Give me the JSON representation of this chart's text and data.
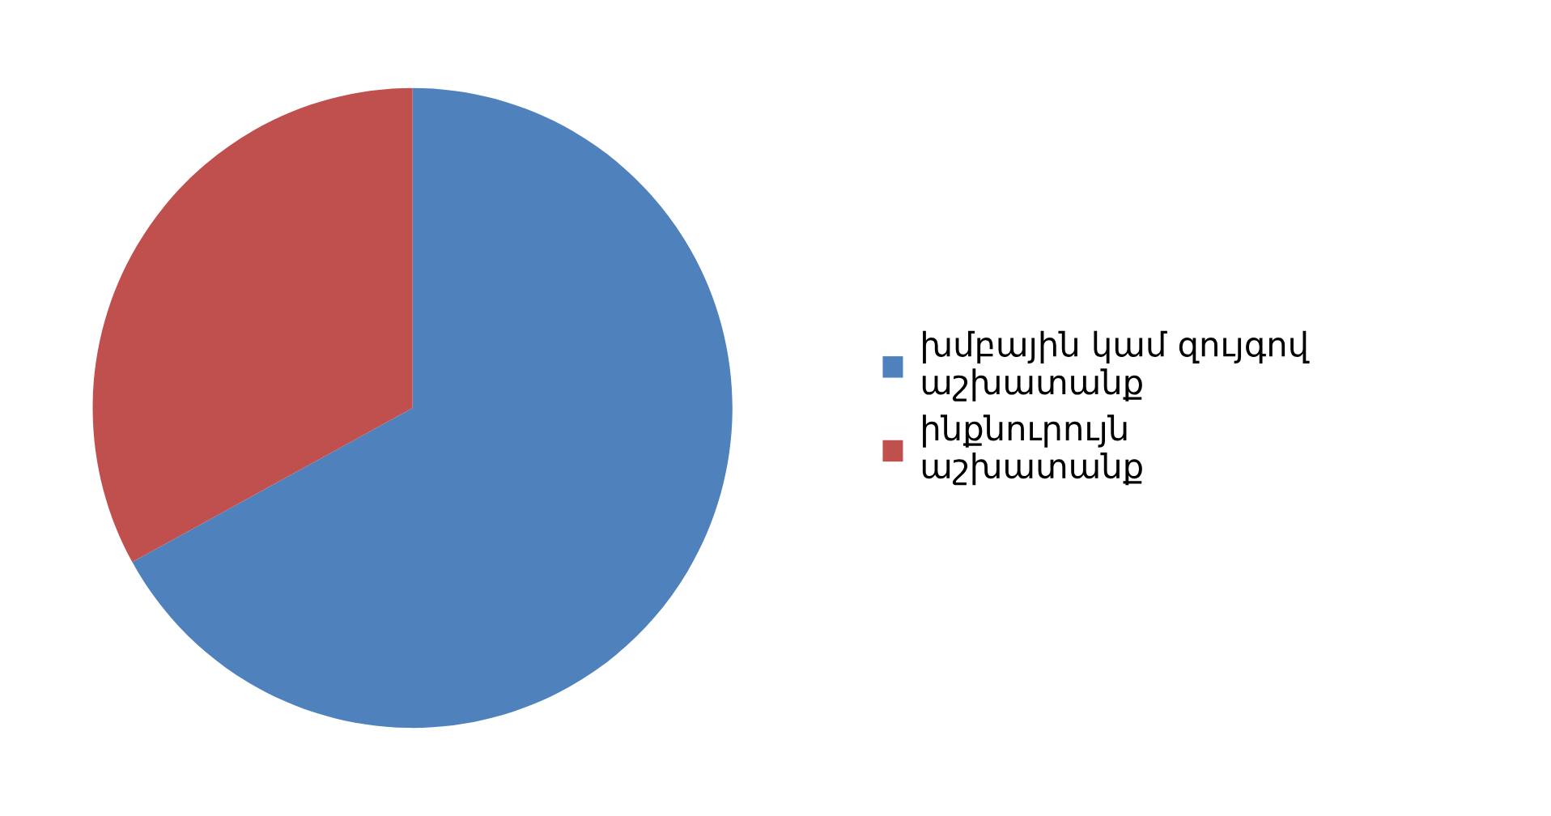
{
  "chart_data": {
    "type": "pie",
    "categories": [
      "խմբային կամ զույգով\nաշխատանք",
      "ինքնուրույն\nաշխատանք"
    ],
    "values": [
      67,
      33
    ],
    "colors": [
      "#4f81bd",
      "#c0504d"
    ],
    "legend": "right"
  }
}
